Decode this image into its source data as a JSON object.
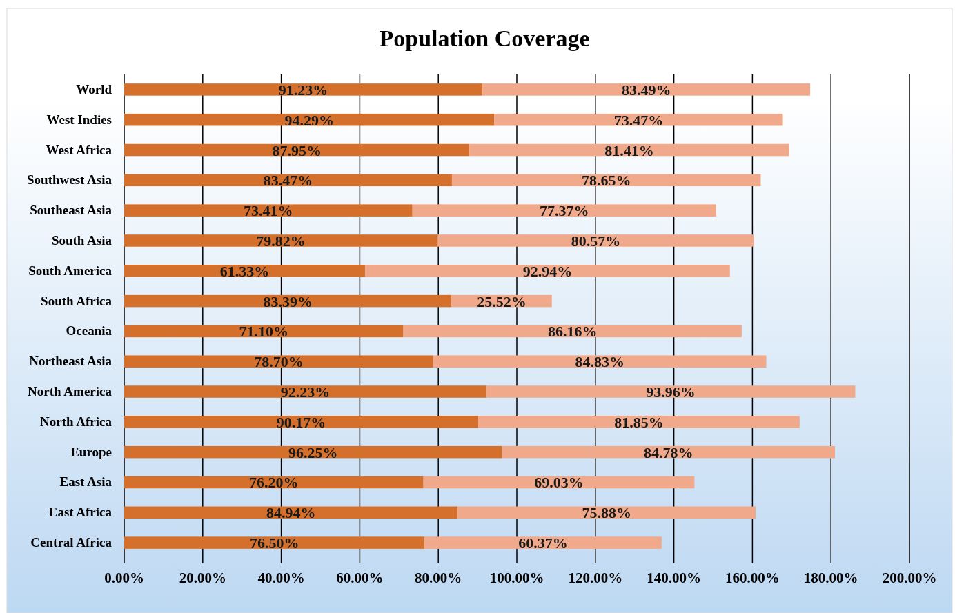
{
  "chart_data": {
    "type": "bar",
    "title": "Population Coverage",
    "orientation": "horizontal",
    "stacked": true,
    "grid": "x",
    "categories": [
      "World",
      "West Indies",
      "West Africa",
      "Southwest Asia",
      "Southeast Asia",
      "South Asia",
      "South America",
      "South Africa",
      "Oceania",
      "Northeast Asia",
      "North America",
      "North Africa",
      "Europe",
      "East Asia",
      "East Africa",
      "Central Africa"
    ],
    "xlim": [
      0,
      200
    ],
    "xticks": [
      {
        "value": 0,
        "label": "0.00%"
      },
      {
        "value": 20,
        "label": "20.00%"
      },
      {
        "value": 40,
        "label": "40.00%"
      },
      {
        "value": 60,
        "label": "60.00%"
      },
      {
        "value": 80,
        "label": "80.00%"
      },
      {
        "value": 100,
        "label": "100.00%"
      },
      {
        "value": 120,
        "label": "120.00%"
      },
      {
        "value": 140,
        "label": "140.00%"
      },
      {
        "value": 160,
        "label": "160.00%"
      },
      {
        "value": 180,
        "label": "180.00%"
      },
      {
        "value": 200,
        "label": "200.00%"
      }
    ],
    "series": [
      {
        "color": "#d4702c",
        "values": [
          91.23,
          94.29,
          87.95,
          83.47,
          73.41,
          79.82,
          61.33,
          83.39,
          71.1,
          78.7,
          92.23,
          90.17,
          96.25,
          76.2,
          84.94,
          76.5
        ],
        "value_labels": [
          "91.23%",
          "94.29%",
          "87.95%",
          "83.47%",
          "73.41%",
          "79.82%",
          "61.33%",
          "83.39%",
          "71.10%",
          "78.70%",
          "92.23%",
          "90.17%",
          "96.25%",
          "76.20%",
          "84.94%",
          "76.50%"
        ]
      },
      {
        "color": "#f0a98a",
        "values": [
          83.49,
          73.47,
          81.41,
          78.65,
          77.37,
          80.57,
          92.94,
          25.52,
          86.16,
          84.83,
          93.96,
          81.85,
          84.78,
          69.03,
          75.88,
          60.37
        ],
        "value_labels": [
          "83.49%",
          "73.47%",
          "81.41%",
          "78.65%",
          "77.37%",
          "80.57%",
          "92.94%",
          "25.52%",
          "86.16%",
          "84.83%",
          "93.96%",
          "81.85%",
          "84.78%",
          "69.03%",
          "75.88%",
          "60.37%"
        ]
      }
    ]
  }
}
